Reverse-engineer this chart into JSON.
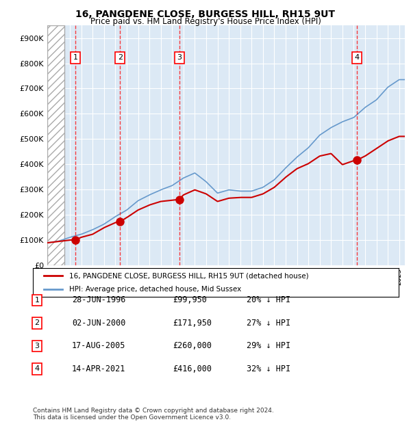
{
  "title": "16, PANGDENE CLOSE, BURGESS HILL, RH15 9UT",
  "subtitle": "Price paid vs. HM Land Registry's House Price Index (HPI)",
  "ylim": [
    0,
    950000
  ],
  "xlim_start": 1994.0,
  "xlim_end": 2025.5,
  "hpi_color": "#6699cc",
  "price_color": "#cc0000",
  "sale_dates": [
    1996.49,
    2000.42,
    2005.63,
    2021.29
  ],
  "sale_prices": [
    99950,
    171950,
    260000,
    416000
  ],
  "sale_labels": [
    "1",
    "2",
    "3",
    "4"
  ],
  "legend_price_label": "16, PANGDENE CLOSE, BURGESS HILL, RH15 9UT (detached house)",
  "legend_hpi_label": "HPI: Average price, detached house, Mid Sussex",
  "table_rows": [
    [
      "1",
      "28-JUN-1996",
      "£99,950",
      "20% ↓ HPI"
    ],
    [
      "2",
      "02-JUN-2000",
      "£171,950",
      "27% ↓ HPI"
    ],
    [
      "3",
      "17-AUG-2005",
      "£260,000",
      "29% ↓ HPI"
    ],
    [
      "4",
      "14-APR-2021",
      "£416,000",
      "32% ↓ HPI"
    ]
  ],
  "footnote": "Contains HM Land Registry data © Crown copyright and database right 2024.\nThis data is licensed under the Open Government Licence v3.0.",
  "background_plot": "#dce9f5",
  "hatch_region_end": 1995.5,
  "yticks": [
    0,
    100000,
    200000,
    300000,
    400000,
    500000,
    600000,
    700000,
    800000,
    900000
  ],
  "ytick_labels": [
    "£0",
    "£100K",
    "£200K",
    "£300K",
    "£400K",
    "£500K",
    "£600K",
    "£700K",
    "£800K",
    "£900K"
  ],
  "hpi_years_ctrl": [
    1994,
    1995,
    1996,
    1997,
    1998,
    1999,
    2000,
    2001,
    2002,
    2003,
    2004,
    2005,
    2006,
    2007,
    2008,
    2009,
    2010,
    2011,
    2012,
    2013,
    2014,
    2015,
    2016,
    2017,
    2018,
    2019,
    2020,
    2021,
    2022,
    2023,
    2024,
    2025
  ],
  "hpi_vals_ctrl": [
    88000,
    95000,
    110000,
    122000,
    140000,
    162000,
    192000,
    218000,
    255000,
    278000,
    298000,
    315000,
    345000,
    365000,
    330000,
    285000,
    298000,
    293000,
    293000,
    308000,
    338000,
    385000,
    428000,
    465000,
    515000,
    545000,
    568000,
    585000,
    625000,
    655000,
    705000,
    735000
  ],
  "price_years_ctrl": [
    1994,
    1996,
    1996.49,
    1997,
    1998,
    1999,
    2000,
    2000.42,
    2001,
    2002,
    2003,
    2004,
    2005,
    2005.63,
    2006,
    2007,
    2008,
    2009,
    2010,
    2011,
    2012,
    2013,
    2014,
    2015,
    2016,
    2017,
    2018,
    2019,
    2020,
    2021,
    2021.29,
    2022,
    2023,
    2024,
    2025,
    2025.5
  ],
  "price_vals_ctrl": [
    88000,
    99000,
    99950,
    110000,
    122000,
    148000,
    168000,
    171950,
    188000,
    218000,
    238000,
    252000,
    257000,
    260000,
    278000,
    298000,
    282000,
    252000,
    265000,
    268000,
    268000,
    282000,
    308000,
    348000,
    382000,
    402000,
    432000,
    442000,
    398000,
    414000,
    416000,
    432000,
    462000,
    492000,
    510000,
    510000
  ]
}
